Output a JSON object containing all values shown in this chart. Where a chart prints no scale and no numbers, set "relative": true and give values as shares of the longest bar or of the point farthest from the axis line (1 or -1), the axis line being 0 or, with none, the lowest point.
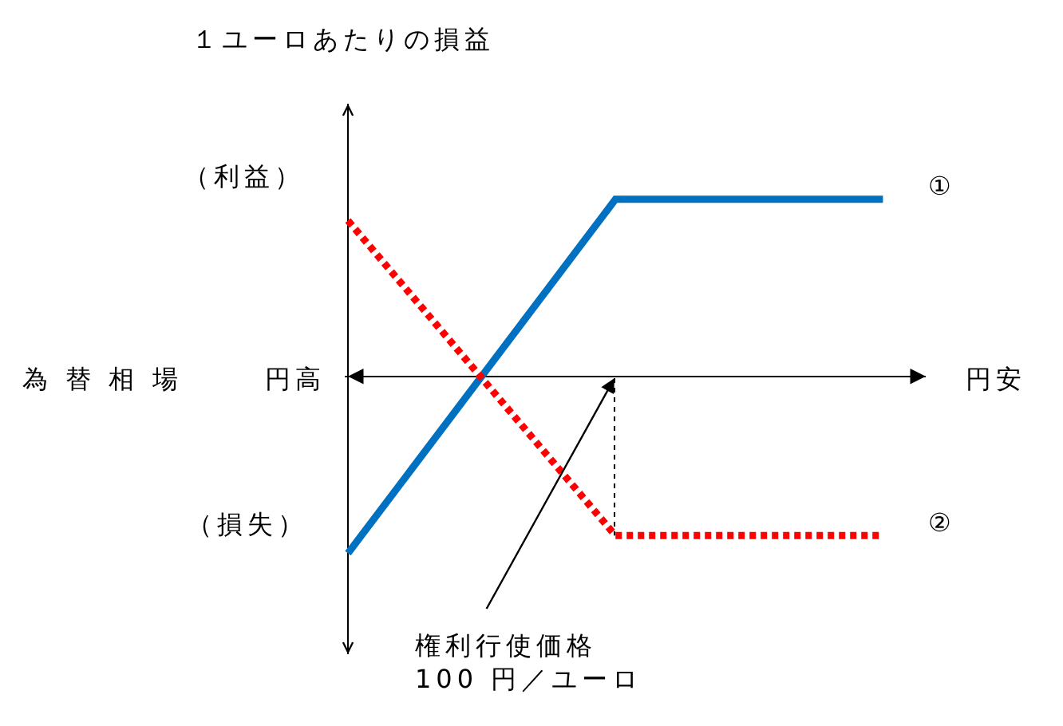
{
  "chart_data": {
    "type": "line",
    "relative": true,
    "categories": [
      null,
      null,
      null
    ],
    "series": [
      {
        "name": "①",
        "color": "#0070c0",
        "values": [
          -1,
          1,
          1
        ],
        "line_style": "solid"
      },
      {
        "name": "②",
        "color": "#ff0000",
        "values": [
          0.88,
          -0.9,
          -0.9
        ],
        "line_style": "dotted"
      }
    ],
    "annotations": [
      "１ユーロあたりの損益",
      "（利益）",
      "（損失）",
      "為 替 相 場",
      "円高",
      "円安",
      "権利行使価格\n100 円／ユーロ"
    ]
  }
}
